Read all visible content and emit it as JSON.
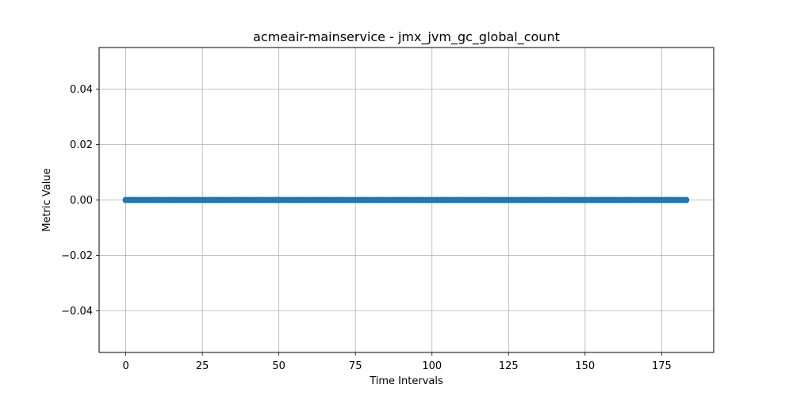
{
  "chart_data": {
    "type": "line",
    "title": "acmeair-mainservice - jmx_jvm_gc_global_count",
    "xlabel": "Time Intervals",
    "ylabel": "Metric Value",
    "xlim": [
      -8.7,
      192.0
    ],
    "ylim": [
      -0.055,
      0.055
    ],
    "x_ticks": [
      0,
      25,
      50,
      75,
      100,
      125,
      150,
      175
    ],
    "x_tick_labels": [
      "0",
      "25",
      "50",
      "75",
      "100",
      "125",
      "150",
      "175"
    ],
    "y_ticks": [
      0.04,
      0.02,
      0.0,
      -0.02,
      -0.04
    ],
    "y_tick_labels": [
      "0.04",
      "0.02",
      "0.00",
      "−0.02",
      "−0.04"
    ],
    "grid": true,
    "marker": "circle",
    "color": "#1f77b4",
    "series": [
      {
        "x_start": 0,
        "x_end": 183,
        "x_step": 1,
        "constant_value": 0.0
      }
    ]
  }
}
